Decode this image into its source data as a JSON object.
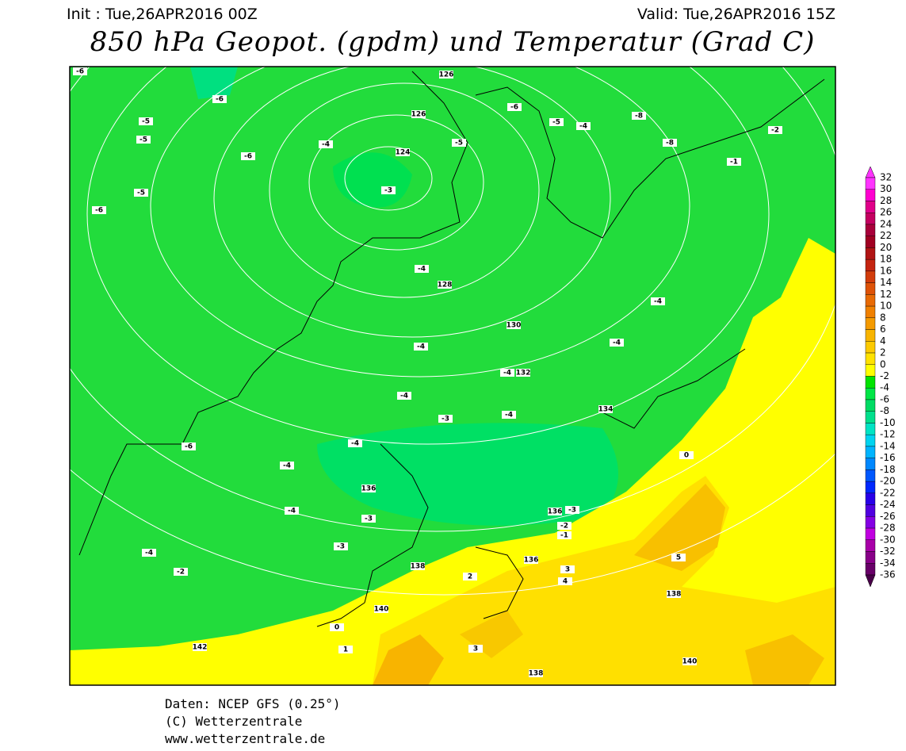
{
  "header": {
    "init": "Init : Tue,26APR2016 00Z",
    "valid": "Valid: Tue,26APR2016 15Z",
    "title": "850 hPa Geopot. (gpdm) und Temperatur (Grad C)"
  },
  "colorbar": {
    "levels": [
      32,
      30,
      28,
      26,
      24,
      22,
      20,
      18,
      16,
      14,
      12,
      10,
      8,
      6,
      4,
      2,
      0,
      -2,
      -4,
      -6,
      -8,
      -10,
      -12,
      -14,
      -16,
      -18,
      -20,
      -22,
      -24,
      -26,
      -28,
      -30,
      -32,
      -34,
      -36
    ],
    "colors": [
      "#ff33ff",
      "#ff00d0",
      "#e0008a",
      "#c40060",
      "#a8003a",
      "#a00022",
      "#b01414",
      "#c42410",
      "#d23c0c",
      "#de5208",
      "#e86a04",
      "#f08000",
      "#f49a00",
      "#f8b400",
      "#fcca00",
      "#ffe200",
      "#ffff00",
      "#00e400",
      "#00e646",
      "#00dc64",
      "#00e08c",
      "#00e4c4",
      "#00d4f0",
      "#00b4ff",
      "#0088ff",
      "#0058ff",
      "#0028ff",
      "#2800e8",
      "#5000e0",
      "#8400e4",
      "#c000e0",
      "#a800a8",
      "#880088",
      "#680068",
      "#480048"
    ]
  },
  "map": {
    "contour_labels": [
      126,
      126,
      124,
      -3,
      -6,
      -5,
      -5,
      -5,
      -6,
      -6,
      -4,
      -6,
      -5,
      -6,
      -5,
      -4,
      -8,
      -8,
      -2,
      -1,
      128,
      -4,
      -4,
      130,
      -4,
      -4,
      132,
      -4,
      134,
      -4,
      -3,
      -4,
      -6,
      -4,
      -4,
      136,
      -4,
      -3,
      136,
      -3,
      -2,
      -1,
      -2,
      -4,
      -3,
      138,
      136,
      138,
      140,
      142,
      0,
      2,
      1,
      3,
      4,
      3,
      5,
      138,
      140,
      0
    ],
    "footer": [
      "Daten: NCEP GFS (0.25°)",
      "(C) Wetterzentrale",
      "www.wetterzentrale.de"
    ]
  }
}
